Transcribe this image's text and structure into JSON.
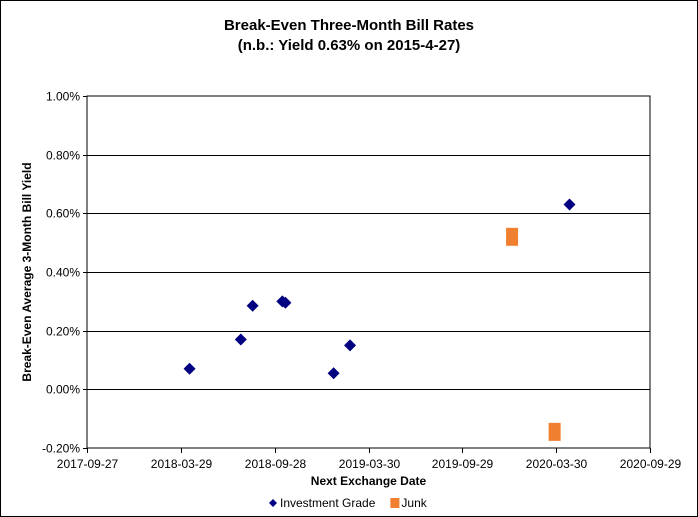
{
  "chart_data": {
    "type": "scatter",
    "title": "Break-Even Three-Month Bill Rates",
    "subtitle": "(n.b.: Yield 0.63% on 2015-4-27)",
    "xlabel": "Next Exchange Date",
    "ylabel": "Break-Even Average 3-Month Bill Yield",
    "x_ticks": [
      "2017-09-27",
      "2018-03-29",
      "2018-09-28",
      "2019-03-30",
      "2019-09-29",
      "2020-03-30",
      "2020-09-29"
    ],
    "xlim": [
      "2017-09-27",
      "2020-09-29"
    ],
    "y_ticks": [
      "-0.20%",
      "0.00%",
      "0.20%",
      "0.40%",
      "0.60%",
      "0.80%",
      "1.00%"
    ],
    "ylim": [
      -0.2,
      1.0
    ],
    "grid": "horizontal",
    "legend_position": "bottom",
    "series": [
      {
        "name": "Investment Grade",
        "marker": "diamond",
        "color": "#000080",
        "points": [
          {
            "x": "2018-04-15",
            "y": 0.07
          },
          {
            "x": "2018-07-24",
            "y": 0.17
          },
          {
            "x": "2018-08-16",
            "y": 0.285
          },
          {
            "x": "2018-10-13",
            "y": 0.3
          },
          {
            "x": "2018-10-19",
            "y": 0.295
          },
          {
            "x": "2019-01-21",
            "y": 0.055
          },
          {
            "x": "2019-02-22",
            "y": 0.15
          },
          {
            "x": "2020-04-25",
            "y": 0.63
          }
        ]
      },
      {
        "name": "Junk",
        "marker": "square",
        "color": "#F08030",
        "points": [
          {
            "x": "2020-01-04",
            "y": 0.52
          },
          {
            "x": "2020-03-27",
            "y": -0.145
          }
        ]
      }
    ]
  }
}
